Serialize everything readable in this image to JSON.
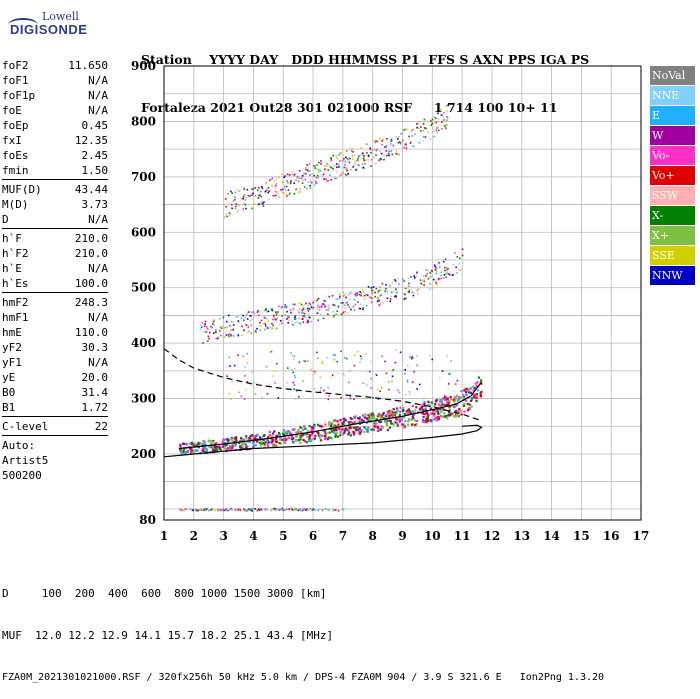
{
  "logo": {
    "line1": "Lowell",
    "line2": "DIGISONDE"
  },
  "header": {
    "row1": "Station    YYYY DAY   DDD HHMMSS P1  FFS S AXN PPS IGA PS",
    "row2": "Fortaleza 2021 Out28 301 021000 RSF     1 714 100 10+ 11"
  },
  "params": [
    {
      "name": "foF2",
      "value": "11.650"
    },
    {
      "name": "foF1",
      "value": "N/A"
    },
    {
      "name": "foF1p",
      "value": "N/A"
    },
    {
      "name": "foE",
      "value": "N/A"
    },
    {
      "name": "foEp",
      "value": "0.45"
    },
    {
      "name": "fxI",
      "value": "12.35"
    },
    {
      "name": "foEs",
      "value": "2.45"
    },
    {
      "name": "fmin",
      "value": "1.50"
    },
    {
      "sep": true
    },
    {
      "name": "MUF(D)",
      "value": "43.44"
    },
    {
      "name": "M(D)",
      "value": "3.73"
    },
    {
      "name": "D",
      "value": "N/A"
    },
    {
      "sep": true
    },
    {
      "name": "h`F",
      "value": "210.0"
    },
    {
      "name": "h`F2",
      "value": "210.0"
    },
    {
      "name": "h`E",
      "value": "N/A"
    },
    {
      "name": "h`Es",
      "value": "100.0"
    },
    {
      "sep": true
    },
    {
      "name": "hmF2",
      "value": "248.3"
    },
    {
      "name": "hmF1",
      "value": "N/A"
    },
    {
      "name": "hmE",
      "value": "110.0"
    },
    {
      "name": "yF2",
      "value": "30.3"
    },
    {
      "name": "yF1",
      "value": "N/A"
    },
    {
      "name": "yE",
      "value": "20.0"
    },
    {
      "name": "B0",
      "value": "31.4"
    },
    {
      "name": "B1",
      "value": "1.72"
    },
    {
      "sep": true
    },
    {
      "name": "C-level",
      "value": "22"
    },
    {
      "sep": true
    },
    {
      "note": "Auto:"
    },
    {
      "note": "Artist5"
    },
    {
      "note": "500200"
    }
  ],
  "legend": [
    {
      "label": "NoVal",
      "color": "#808080"
    },
    {
      "label": "NNE",
      "color": "#7fd0ff"
    },
    {
      "label": "E",
      "color": "#20b0ff"
    },
    {
      "label": "W",
      "color": "#a000a0"
    },
    {
      "label": "Vo-",
      "color": "#ff30c8"
    },
    {
      "label": "Vo+",
      "color": "#e00000"
    },
    {
      "label": "SSW",
      "color": "#ffb0b0"
    },
    {
      "label": "X-",
      "color": "#008000"
    },
    {
      "label": "X+",
      "color": "#80c040"
    },
    {
      "label": "SSE",
      "color": "#d0d000"
    },
    {
      "label": "NNW",
      "color": "#0000c0"
    }
  ],
  "chart_data": {
    "type": "scatter",
    "xlim": [
      1,
      17
    ],
    "ylim": [
      80,
      900
    ],
    "x_ticks": [
      "1",
      "2",
      "3",
      "4",
      "5",
      "6",
      "7",
      "8",
      "9",
      "10",
      "11",
      "12",
      "13",
      "14",
      "15",
      "16",
      "17"
    ],
    "y_ticks": [
      {
        "v": 80,
        "label": "80"
      },
      {
        "v": 200,
        "label": "200"
      },
      {
        "v": 300,
        "label": "300"
      },
      {
        "v": 400,
        "label": "400"
      },
      {
        "v": 500,
        "label": "500"
      },
      {
        "v": 600,
        "label": "600"
      },
      {
        "v": 700,
        "label": "700"
      },
      {
        "v": 800,
        "label": "800"
      },
      {
        "v": 900,
        "label": "900"
      }
    ],
    "grid": true,
    "traces": [
      {
        "name": "F2 trace (1st hop)",
        "x": [
          1.5,
          3,
          4.5,
          6,
          7.5,
          9,
          10,
          10.8,
          11.3,
          11.65
        ],
        "y": [
          210,
          218,
          228,
          240,
          255,
          268,
          280,
          290,
          305,
          330
        ]
      },
      {
        "name": "F2 2nd hop",
        "x": [
          2.2,
          3,
          4.5,
          6,
          7.5,
          9,
          10,
          11
        ],
        "y": [
          420,
          430,
          445,
          460,
          480,
          500,
          520,
          555
        ]
      },
      {
        "name": "F2 3rd hop",
        "x": [
          3.0,
          4,
          5,
          6,
          7,
          8,
          9,
          10,
          10.5
        ],
        "y": [
          650,
          665,
          685,
          705,
          725,
          745,
          765,
          790,
          810
        ]
      },
      {
        "name": "Es layer",
        "x": [
          1.5,
          2,
          3,
          4,
          5,
          6,
          7
        ],
        "y": [
          100,
          100,
          100,
          100,
          101,
          100,
          100
        ]
      }
    ],
    "profile_solid": {
      "x": [
        1,
        2,
        4,
        6,
        8,
        9,
        10,
        11,
        11.5,
        11.65,
        11.5,
        11
      ],
      "y": [
        195,
        200,
        210,
        215,
        220,
        225,
        230,
        236,
        242,
        248,
        252,
        250
      ]
    },
    "profile_dashed": {
      "x": [
        1,
        1.5,
        2,
        3,
        4,
        5,
        6,
        7,
        8,
        9,
        10,
        11,
        11.65
      ],
      "y": [
        390,
        370,
        355,
        338,
        326,
        318,
        312,
        307,
        302,
        295,
        285,
        272,
        260
      ]
    }
  },
  "bottom": {
    "line1": "D     100  200  400  600  800 1000 1500 3000 [km]",
    "line2": "MUF  12.0 12.2 12.9 14.1 15.7 18.2 25.1 43.4 [MHz]",
    "line3": "FZA0M_2021301021000.RSF / 320fx256h 50 kHz 5.0 km / DPS-4 FZA0M 904 / 3.9 S 321.6 E   Ion2Png 1.3.20"
  }
}
